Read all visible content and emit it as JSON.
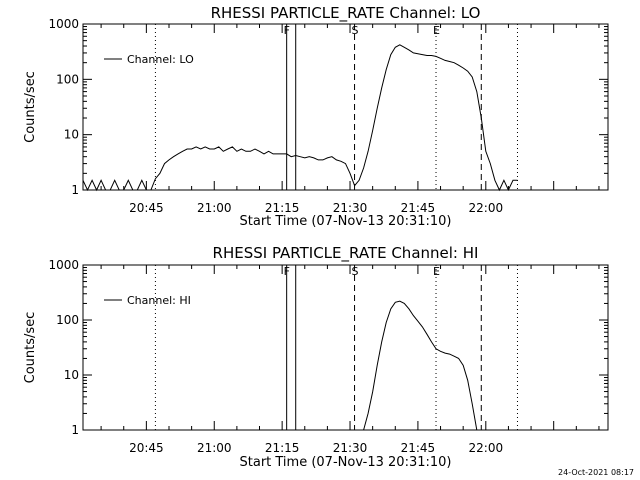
{
  "footer_date": "24-Oct-2021 08:17",
  "chart_data": [
    {
      "type": "line",
      "title": "RHESSI PARTICLE_RATE Channel: LO",
      "xlabel": "Start Time (07-Nov-13 20:31:10)",
      "ylabel": "Counts/sec",
      "y_scale": "log",
      "ylim": [
        1,
        1000
      ],
      "xlim": [
        "20:31",
        "22:27"
      ],
      "x_ticks": [
        "20:45",
        "21:00",
        "21:15",
        "21:30",
        "21:45",
        "22:00"
      ],
      "y_ticks": [
        "1",
        "10",
        "100",
        "1000"
      ],
      "legend": "Channel: LO",
      "legend_position": "top-left",
      "markers": [
        {
          "time": "20:47",
          "style": "dotted",
          "label": ""
        },
        {
          "time": "21:16",
          "style": "solid",
          "label": "F"
        },
        {
          "time": "21:18",
          "style": "solid",
          "label": ""
        },
        {
          "time": "21:31",
          "style": "dashed",
          "label": "S"
        },
        {
          "time": "21:49",
          "style": "dotted",
          "label": "E"
        },
        {
          "time": "21:59",
          "style": "dashed",
          "label": ""
        },
        {
          "time": "22:07",
          "style": "dotted",
          "label": ""
        }
      ],
      "series": [
        {
          "x": [
            "20:31",
            "20:32",
            "20:33",
            "20:34",
            "20:35",
            "20:36",
            "20:37",
            "20:38",
            "20:39",
            "20:40",
            "20:41",
            "20:42",
            "20:43",
            "20:44",
            "20:45",
            "20:46",
            "20:47",
            "20:48",
            "20:49",
            "20:50",
            "20:51",
            "20:52",
            "20:53",
            "20:54",
            "20:55",
            "20:56",
            "20:57",
            "20:58",
            "20:59",
            "21:00",
            "21:01",
            "21:02",
            "21:03",
            "21:04",
            "21:05",
            "21:06",
            "21:07",
            "21:08",
            "21:09",
            "21:10",
            "21:11",
            "21:12",
            "21:13",
            "21:14",
            "21:15",
            "21:16",
            "21:17",
            "21:18",
            "21:19",
            "21:20",
            "21:21",
            "21:22",
            "21:23",
            "21:24",
            "21:25",
            "21:26",
            "21:27",
            "21:28",
            "21:29",
            "21:30",
            "21:31",
            "21:32",
            "21:33",
            "21:34",
            "21:35",
            "21:36",
            "21:37",
            "21:38",
            "21:39",
            "21:40",
            "21:41",
            "21:42",
            "21:43",
            "21:44",
            "21:45",
            "21:46",
            "21:47",
            "21:48",
            "21:49",
            "21:50",
            "21:51",
            "21:52",
            "21:53",
            "21:54",
            "21:55",
            "21:56",
            "21:57",
            "21:58",
            "21:59",
            "22:00",
            "22:01",
            "22:02",
            "22:03",
            "22:04",
            "22:05",
            "22:06",
            "22:07"
          ],
          "y": [
            1.5,
            1,
            1.5,
            1,
            1.5,
            1,
            1,
            1.5,
            1,
            1,
            1.5,
            1,
            1,
            1.5,
            1,
            1,
            1.6,
            2,
            3,
            3.5,
            4,
            4.5,
            5,
            5.5,
            5.5,
            6,
            5.5,
            6,
            5.5,
            5.5,
            6,
            5,
            5.5,
            6,
            5,
            5.5,
            5,
            5,
            5.5,
            5,
            4.5,
            5,
            4.5,
            4.5,
            4.5,
            4.5,
            4,
            4.2,
            4,
            3.8,
            4,
            3.8,
            3.5,
            3.5,
            3.8,
            4,
            3.5,
            3.3,
            3,
            2,
            1.2,
            1.5,
            2.5,
            5,
            12,
            30,
            70,
            150,
            280,
            380,
            420,
            380,
            340,
            300,
            290,
            280,
            270,
            270,
            260,
            240,
            220,
            210,
            200,
            180,
            160,
            140,
            110,
            60,
            20,
            5,
            3,
            1.5,
            1,
            1.5,
            1,
            1.5,
            1.5
          ]
        }
      ]
    },
    {
      "type": "line",
      "title": "RHESSI PARTICLE_RATE Channel: HI",
      "xlabel": "Start Time (07-Nov-13 20:31:10)",
      "ylabel": "Counts/sec",
      "y_scale": "log",
      "ylim": [
        1,
        1000
      ],
      "xlim": [
        "20:31",
        "22:27"
      ],
      "x_ticks": [
        "20:45",
        "21:00",
        "21:15",
        "21:30",
        "21:45",
        "22:00"
      ],
      "y_ticks": [
        "1",
        "10",
        "100",
        "1000"
      ],
      "legend": "Channel: HI",
      "legend_position": "top-left",
      "markers": [
        {
          "time": "20:47",
          "style": "dotted",
          "label": ""
        },
        {
          "time": "21:16",
          "style": "solid",
          "label": "F"
        },
        {
          "time": "21:18",
          "style": "solid",
          "label": ""
        },
        {
          "time": "21:31",
          "style": "dashed",
          "label": "S"
        },
        {
          "time": "21:49",
          "style": "dotted",
          "label": "E"
        },
        {
          "time": "21:59",
          "style": "dashed",
          "label": ""
        },
        {
          "time": "22:07",
          "style": "dotted",
          "label": ""
        }
      ],
      "series": [
        {
          "x": [
            "21:33",
            "21:34",
            "21:35",
            "21:36",
            "21:37",
            "21:38",
            "21:39",
            "21:40",
            "21:41",
            "21:42",
            "21:43",
            "21:44",
            "21:45",
            "21:46",
            "21:47",
            "21:48",
            "21:49",
            "21:50",
            "21:51",
            "21:52",
            "21:53",
            "21:54",
            "21:55",
            "21:56",
            "21:57",
            "21:58"
          ],
          "y": [
            1,
            2,
            5,
            15,
            40,
            90,
            160,
            210,
            220,
            200,
            160,
            120,
            95,
            75,
            55,
            40,
            30,
            27,
            25,
            24,
            22,
            20,
            15,
            8,
            3,
            1
          ]
        }
      ]
    }
  ]
}
